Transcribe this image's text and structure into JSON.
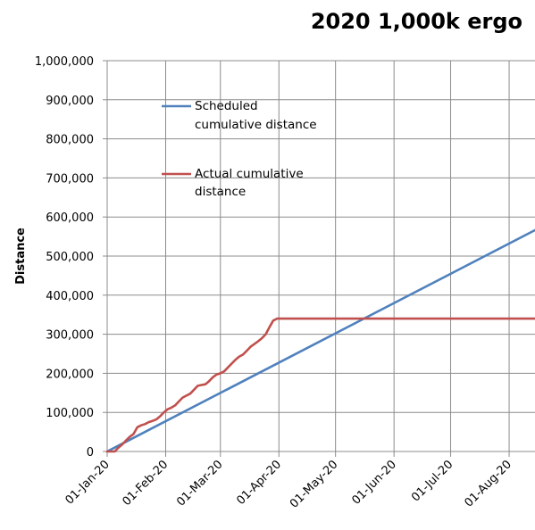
{
  "chart_data": {
    "type": "line",
    "title": "2020 1,000k ergo",
    "xlabel": "",
    "ylabel": "Distance",
    "ylim": [
      0,
      1000000
    ],
    "xlim": [
      "2020-01-01",
      "2020-08-31"
    ],
    "y_ticks": [
      0,
      100000,
      200000,
      300000,
      400000,
      500000,
      600000,
      700000,
      800000,
      900000,
      1000000
    ],
    "y_tick_labels": [
      "0",
      "100,000",
      "200,000",
      "300,000",
      "400,000",
      "500,000",
      "600,000",
      "700,000",
      "800,000",
      "900,000",
      "1,000,000"
    ],
    "x_ticks": [
      "2020-01-01",
      "2020-02-01",
      "2020-03-01",
      "2020-04-01",
      "2020-05-01",
      "2020-06-01",
      "2020-07-01",
      "2020-08-01"
    ],
    "x_tick_labels": [
      "01-Jan-20",
      "01-Feb-20",
      "01-Mar-20",
      "01-Apr-20",
      "01-May-20",
      "01-Jun-20",
      "01-Jul-20",
      "01-Aug-20"
    ],
    "grid": true,
    "legend_position": "upper-left",
    "series": [
      {
        "name": "Scheduled cumulative distance",
        "color": "#4f81bd",
        "points": [
          [
            "2020-01-01",
            0
          ],
          [
            "2020-08-31",
            607000
          ]
        ]
      },
      {
        "name": "Actual cumulative distance",
        "color": "#c0504d",
        "points": [
          [
            "2020-01-01",
            0
          ],
          [
            "2020-01-05",
            0
          ],
          [
            "2020-01-07",
            10000
          ],
          [
            "2020-01-09",
            18000
          ],
          [
            "2020-01-11",
            28000
          ],
          [
            "2020-01-13",
            38000
          ],
          [
            "2020-01-15",
            45000
          ],
          [
            "2020-01-17",
            62000
          ],
          [
            "2020-01-19",
            67000
          ],
          [
            "2020-01-21",
            70000
          ],
          [
            "2020-01-23",
            75000
          ],
          [
            "2020-01-25",
            78000
          ],
          [
            "2020-01-27",
            82000
          ],
          [
            "2020-01-29",
            90000
          ],
          [
            "2020-01-31",
            100000
          ],
          [
            "2020-02-02",
            108000
          ],
          [
            "2020-02-04",
            112000
          ],
          [
            "2020-02-06",
            118000
          ],
          [
            "2020-02-08",
            128000
          ],
          [
            "2020-02-10",
            138000
          ],
          [
            "2020-02-12",
            143000
          ],
          [
            "2020-02-14",
            148000
          ],
          [
            "2020-02-16",
            158000
          ],
          [
            "2020-02-18",
            168000
          ],
          [
            "2020-02-20",
            170000
          ],
          [
            "2020-02-22",
            172000
          ],
          [
            "2020-02-24",
            180000
          ],
          [
            "2020-02-26",
            190000
          ],
          [
            "2020-02-28",
            197000
          ],
          [
            "2020-03-01",
            200000
          ],
          [
            "2020-03-03",
            205000
          ],
          [
            "2020-03-05",
            215000
          ],
          [
            "2020-03-07",
            225000
          ],
          [
            "2020-03-09",
            235000
          ],
          [
            "2020-03-11",
            243000
          ],
          [
            "2020-03-13",
            248000
          ],
          [
            "2020-03-15",
            258000
          ],
          [
            "2020-03-17",
            268000
          ],
          [
            "2020-03-19",
            275000
          ],
          [
            "2020-03-21",
            282000
          ],
          [
            "2020-03-23",
            290000
          ],
          [
            "2020-03-25",
            300000
          ],
          [
            "2020-03-27",
            318000
          ],
          [
            "2020-03-29",
            335000
          ],
          [
            "2020-03-31",
            340000
          ],
          [
            "2020-08-31",
            340000
          ]
        ]
      }
    ]
  }
}
